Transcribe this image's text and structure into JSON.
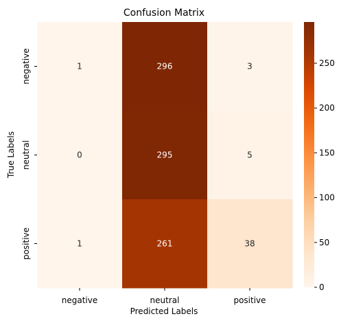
{
  "chart_data": {
    "type": "heatmap",
    "title": "Confusion Matrix",
    "xlabel": "Predicted Labels",
    "ylabel": "True Labels",
    "x_categories": [
      "negative",
      "neutral",
      "positive"
    ],
    "y_categories": [
      "negative",
      "neutral",
      "positive"
    ],
    "values": [
      [
        1,
        296,
        3
      ],
      [
        0,
        295,
        5
      ],
      [
        1,
        261,
        38
      ]
    ],
    "colormap": "Oranges",
    "colorbar": {
      "range": [
        0,
        296
      ],
      "ticks": [
        0,
        50,
        100,
        150,
        200,
        250
      ]
    },
    "grid": false
  }
}
